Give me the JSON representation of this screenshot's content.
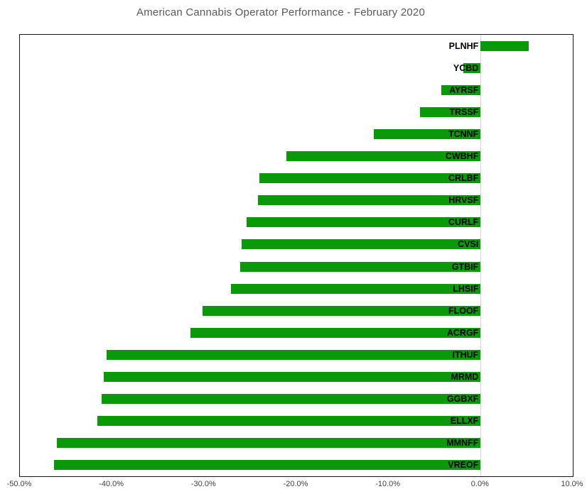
{
  "chart_data": {
    "type": "bar",
    "orientation": "horizontal",
    "title": "American Cannabis Operator Performance - February 2020",
    "categories": [
      "PLNHF",
      "YCBD",
      "AYRSF",
      "TRSSF",
      "TCNNF",
      "CWBHF",
      "CRLBF",
      "HRVSF",
      "CURLF",
      "CVSI",
      "GTBIF",
      "LHSIF",
      "FLOOF",
      "ACRGF",
      "ITHUF",
      "MRMD",
      "GGBXF",
      "ELLXF",
      "MMNFF",
      "VREOF"
    ],
    "values_pct": [
      5.2,
      -1.9,
      -4.3,
      -6.6,
      -11.6,
      -21.1,
      -24.0,
      -24.2,
      -25.4,
      -25.9,
      -26.1,
      -27.1,
      -30.2,
      -31.5,
      -40.6,
      -40.9,
      -41.1,
      -41.6,
      -46.0,
      -46.3
    ],
    "xlabel": "",
    "ylabel": "",
    "x_axis": {
      "min": -50,
      "max": 10,
      "tick_step": 10,
      "tick_labels": [
        "-50.0%",
        "-40.0%",
        "-30.0%",
        "-20.0%",
        "-10.0%",
        "0.0%",
        "10.0%"
      ]
    },
    "grid": false,
    "legend": false,
    "colors": {
      "bar_fill": "#099909",
      "title_text": "#595959",
      "axis_tick_text": "#3f3f3f",
      "plot_border": "#161616",
      "zero_axis_line": "#d6d6d6",
      "category_label_text": "#000000"
    }
  }
}
